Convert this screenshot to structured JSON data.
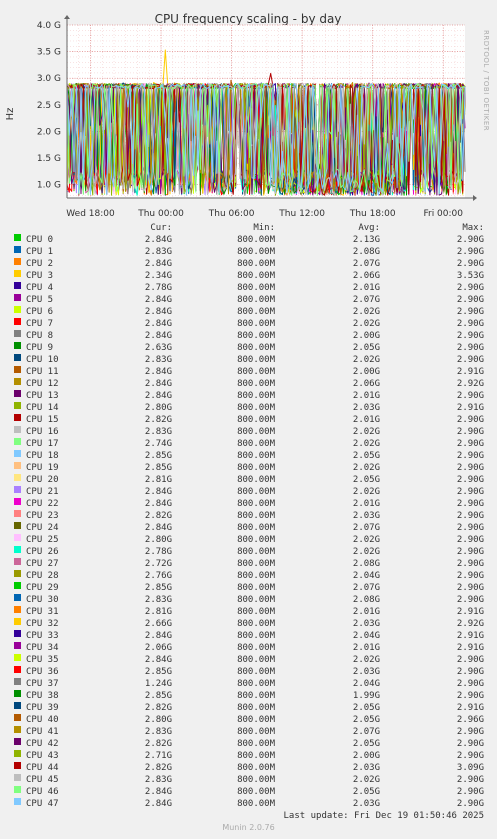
{
  "chart_data": {
    "type": "line",
    "title": "CPU frequency scaling - by day",
    "ylabel": "Hz",
    "yticks": [
      "1.0 G",
      "1.5 G",
      "2.0 G",
      "2.5 G",
      "3.0 G",
      "3.5 G",
      "4.0 G"
    ],
    "ytick_values": [
      1.0,
      1.5,
      2.0,
      2.5,
      3.0,
      3.5,
      4.0
    ],
    "ylim": [
      0.75,
      4.0
    ],
    "xticks": [
      "Wed 18:00",
      "Thu 00:00",
      "Thu 06:00",
      "Thu 12:00",
      "Thu 18:00",
      "Fri 00:00"
    ],
    "xtick_hours": [
      18,
      24,
      30,
      36,
      42,
      48
    ],
    "xlim_hours": [
      16.0,
      49.85
    ],
    "side_text": "RRDTOOL / TOBI OETIKER",
    "grid": true,
    "legend_headers": {
      "cur": "Cur:",
      "min": "Min:",
      "avg": "Avg:",
      "max": "Max:"
    },
    "series": [
      {
        "name": "CPU 0",
        "color": "#00cc00",
        "cur": "2.84G",
        "min": "800.00M",
        "avg": "2.13G",
        "max": "2.90G"
      },
      {
        "name": "CPU 1",
        "color": "#0066b3",
        "cur": "2.83G",
        "min": "800.00M",
        "avg": "2.08G",
        "max": "2.90G"
      },
      {
        "name": "CPU 2",
        "color": "#ff8000",
        "cur": "2.84G",
        "min": "800.00M",
        "avg": "2.07G",
        "max": "2.90G"
      },
      {
        "name": "CPU 3",
        "color": "#ffcc00",
        "cur": "2.34G",
        "min": "800.00M",
        "avg": "2.06G",
        "max": "3.53G"
      },
      {
        "name": "CPU 4",
        "color": "#330099",
        "cur": "2.78G",
        "min": "800.00M",
        "avg": "2.01G",
        "max": "2.90G"
      },
      {
        "name": "CPU 5",
        "color": "#990099",
        "cur": "2.84G",
        "min": "800.00M",
        "avg": "2.07G",
        "max": "2.90G"
      },
      {
        "name": "CPU 6",
        "color": "#ccff00",
        "cur": "2.84G",
        "min": "800.00M",
        "avg": "2.02G",
        "max": "2.90G"
      },
      {
        "name": "CPU 7",
        "color": "#ff0000",
        "cur": "2.84G",
        "min": "800.00M",
        "avg": "2.02G",
        "max": "2.90G"
      },
      {
        "name": "CPU 8",
        "color": "#808080",
        "cur": "2.84G",
        "min": "800.00M",
        "avg": "2.00G",
        "max": "2.90G"
      },
      {
        "name": "CPU 9",
        "color": "#008f00",
        "cur": "2.63G",
        "min": "800.00M",
        "avg": "2.05G",
        "max": "2.90G"
      },
      {
        "name": "CPU 10",
        "color": "#00487d",
        "cur": "2.83G",
        "min": "800.00M",
        "avg": "2.02G",
        "max": "2.90G"
      },
      {
        "name": "CPU 11",
        "color": "#b35a00",
        "cur": "2.84G",
        "min": "800.00M",
        "avg": "2.00G",
        "max": "2.91G"
      },
      {
        "name": "CPU 12",
        "color": "#b38f00",
        "cur": "2.84G",
        "min": "800.00M",
        "avg": "2.06G",
        "max": "2.92G"
      },
      {
        "name": "CPU 13",
        "color": "#6b006b",
        "cur": "2.84G",
        "min": "800.00M",
        "avg": "2.01G",
        "max": "2.90G"
      },
      {
        "name": "CPU 14",
        "color": "#8fb300",
        "cur": "2.80G",
        "min": "800.00M",
        "avg": "2.03G",
        "max": "2.91G"
      },
      {
        "name": "CPU 15",
        "color": "#b30000",
        "cur": "2.82G",
        "min": "800.00M",
        "avg": "2.01G",
        "max": "2.90G"
      },
      {
        "name": "CPU 16",
        "color": "#bebebe",
        "cur": "2.83G",
        "min": "800.00M",
        "avg": "2.02G",
        "max": "2.90G"
      },
      {
        "name": "CPU 17",
        "color": "#80ff80",
        "cur": "2.74G",
        "min": "800.00M",
        "avg": "2.02G",
        "max": "2.90G"
      },
      {
        "name": "CPU 18",
        "color": "#80c9ff",
        "cur": "2.85G",
        "min": "800.00M",
        "avg": "2.05G",
        "max": "2.90G"
      },
      {
        "name": "CPU 19",
        "color": "#ffc080",
        "cur": "2.85G",
        "min": "800.00M",
        "avg": "2.02G",
        "max": "2.90G"
      },
      {
        "name": "CPU 20",
        "color": "#ffe680",
        "cur": "2.81G",
        "min": "800.00M",
        "avg": "2.05G",
        "max": "2.90G"
      },
      {
        "name": "CPU 21",
        "color": "#aa80ff",
        "cur": "2.84G",
        "min": "800.00M",
        "avg": "2.02G",
        "max": "2.90G"
      },
      {
        "name": "CPU 22",
        "color": "#ee00cc",
        "cur": "2.84G",
        "min": "800.00M",
        "avg": "2.01G",
        "max": "2.90G"
      },
      {
        "name": "CPU 23",
        "color": "#ff8080",
        "cur": "2.82G",
        "min": "800.00M",
        "avg": "2.03G",
        "max": "2.90G"
      },
      {
        "name": "CPU 24",
        "color": "#666600",
        "cur": "2.84G",
        "min": "800.00M",
        "avg": "2.07G",
        "max": "2.90G"
      },
      {
        "name": "CPU 25",
        "color": "#ffbfff",
        "cur": "2.80G",
        "min": "800.00M",
        "avg": "2.02G",
        "max": "2.90G"
      },
      {
        "name": "CPU 26",
        "color": "#00ffcc",
        "cur": "2.78G",
        "min": "800.00M",
        "avg": "2.02G",
        "max": "2.90G"
      },
      {
        "name": "CPU 27",
        "color": "#cc6699",
        "cur": "2.72G",
        "min": "800.00M",
        "avg": "2.08G",
        "max": "2.90G"
      },
      {
        "name": "CPU 28",
        "color": "#999900",
        "cur": "2.76G",
        "min": "800.00M",
        "avg": "2.04G",
        "max": "2.90G"
      },
      {
        "name": "CPU 29",
        "color": "#00cc00",
        "cur": "2.85G",
        "min": "800.00M",
        "avg": "2.07G",
        "max": "2.90G"
      },
      {
        "name": "CPU 30",
        "color": "#0066b3",
        "cur": "2.83G",
        "min": "800.00M",
        "avg": "2.08G",
        "max": "2.90G"
      },
      {
        "name": "CPU 31",
        "color": "#ff8000",
        "cur": "2.81G",
        "min": "800.00M",
        "avg": "2.01G",
        "max": "2.91G"
      },
      {
        "name": "CPU 32",
        "color": "#ffcc00",
        "cur": "2.66G",
        "min": "800.00M",
        "avg": "2.03G",
        "max": "2.92G"
      },
      {
        "name": "CPU 33",
        "color": "#330099",
        "cur": "2.84G",
        "min": "800.00M",
        "avg": "2.04G",
        "max": "2.91G"
      },
      {
        "name": "CPU 34",
        "color": "#990099",
        "cur": "2.06G",
        "min": "800.00M",
        "avg": "2.01G",
        "max": "2.91G"
      },
      {
        "name": "CPU 35",
        "color": "#ccff00",
        "cur": "2.84G",
        "min": "800.00M",
        "avg": "2.02G",
        "max": "2.90G"
      },
      {
        "name": "CPU 36",
        "color": "#ff0000",
        "cur": "2.85G",
        "min": "800.00M",
        "avg": "2.03G",
        "max": "2.90G"
      },
      {
        "name": "CPU 37",
        "color": "#808080",
        "cur": "1.24G",
        "min": "800.00M",
        "avg": "2.04G",
        "max": "2.90G"
      },
      {
        "name": "CPU 38",
        "color": "#008f00",
        "cur": "2.85G",
        "min": "800.00M",
        "avg": "1.99G",
        "max": "2.90G"
      },
      {
        "name": "CPU 39",
        "color": "#00487d",
        "cur": "2.82G",
        "min": "800.00M",
        "avg": "2.05G",
        "max": "2.91G"
      },
      {
        "name": "CPU 40",
        "color": "#b35a00",
        "cur": "2.80G",
        "min": "800.00M",
        "avg": "2.05G",
        "max": "2.96G"
      },
      {
        "name": "CPU 41",
        "color": "#b38f00",
        "cur": "2.83G",
        "min": "800.00M",
        "avg": "2.07G",
        "max": "2.90G"
      },
      {
        "name": "CPU 42",
        "color": "#6b006b",
        "cur": "2.82G",
        "min": "800.00M",
        "avg": "2.05G",
        "max": "2.90G"
      },
      {
        "name": "CPU 43",
        "color": "#8fb300",
        "cur": "2.71G",
        "min": "800.00M",
        "avg": "2.00G",
        "max": "2.90G"
      },
      {
        "name": "CPU 44",
        "color": "#b30000",
        "cur": "2.82G",
        "min": "800.00M",
        "avg": "2.03G",
        "max": "3.09G"
      },
      {
        "name": "CPU 45",
        "color": "#bebebe",
        "cur": "2.83G",
        "min": "800.00M",
        "avg": "2.02G",
        "max": "2.90G"
      },
      {
        "name": "CPU 46",
        "color": "#80ff80",
        "cur": "2.84G",
        "min": "800.00M",
        "avg": "2.05G",
        "max": "2.90G"
      },
      {
        "name": "CPU 47",
        "color": "#80c9ff",
        "cur": "2.84G",
        "min": "800.00M",
        "avg": "2.03G",
        "max": "2.90G"
      }
    ]
  },
  "footer": {
    "last_update": "Last update: Fri Dec 19 01:50:46 2025",
    "version": "Munin 2.0.76"
  }
}
